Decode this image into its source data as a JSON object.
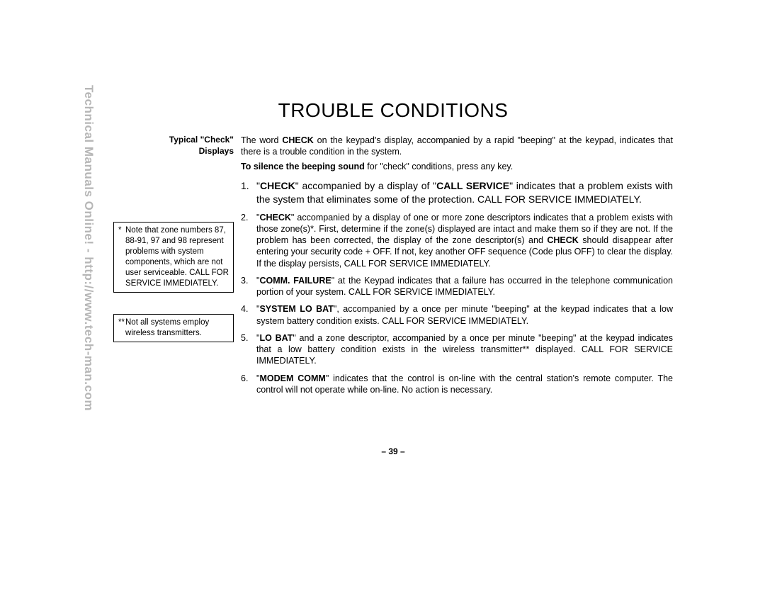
{
  "watermark": "Technical Manuals Online! - http://www.tech-man.com",
  "title": "TROUBLE CONDITIONS",
  "left": {
    "heading_l1": "Typical \"Check\"",
    "heading_l2": "Displays",
    "note1_star": "*",
    "note1_text": "Note that zone numbers 87, 88-91, 97 and 98 represent problems with system components, which are not user serviceable. CALL FOR SERVICE IMMEDIATELY.",
    "note2_star": "**",
    "note2_text": "Not all systems employ wireless transmitters."
  },
  "intro": {
    "p1a": "The word ",
    "p1_bold": "CHECK",
    "p1b": " on the keypad's display, accompanied by a rapid \"beeping\" at the keypad, indicates that there is a trouble condition in the system.",
    "p2_bold": "To silence the beeping sound",
    "p2b": " for \"check\" conditions, press any key."
  },
  "items": [
    {
      "num": "1.",
      "big": true,
      "segs": [
        {
          "t": "\"",
          "b": false
        },
        {
          "t": "CHECK",
          "b": true
        },
        {
          "t": "\" accompanied by a display of \"",
          "b": false
        },
        {
          "t": "CALL SERVICE",
          "b": true
        },
        {
          "t": "\" indicates that a problem exists with the system that eliminates some of the protection. CALL FOR SERVICE IMMEDIATELY.",
          "b": false
        }
      ]
    },
    {
      "num": "2.",
      "big": false,
      "segs": [
        {
          "t": "\"",
          "b": false
        },
        {
          "t": "CHECK",
          "b": true
        },
        {
          "t": "\" accompanied by a display of one or more zone descriptors indicates that a problem exists with those zone(s)*. First, determine if the zone(s) displayed are intact and make them so if they are not. If the problem has been corrected, the display of the zone descriptor(s) and ",
          "b": false
        },
        {
          "t": "CHECK",
          "b": true
        },
        {
          "t": " should disappear after entering your security code + OFF. If not, key another OFF sequence (Code plus OFF) to clear the display. If the display persists, CALL FOR SERVICE IMMEDIATELY.",
          "b": false
        }
      ]
    },
    {
      "num": "3.",
      "big": false,
      "segs": [
        {
          "t": "\"",
          "b": false
        },
        {
          "t": "COMM. FAILURE",
          "b": true
        },
        {
          "t": "\" at the Keypad indicates that a failure has occurred in the telephone communication portion of your system. CALL FOR SERVICE IMMEDIATELY.",
          "b": false
        }
      ]
    },
    {
      "num": "4.",
      "big": false,
      "segs": [
        {
          "t": "\"",
          "b": false
        },
        {
          "t": "SYSTEM LO BAT",
          "b": true
        },
        {
          "t": "\", accompanied by a once per minute \"beeping\" at the keypad indicates that a low system battery condition exists. CALL FOR SERVICE IMMEDIATELY.",
          "b": false
        }
      ]
    },
    {
      "num": "5.",
      "big": false,
      "segs": [
        {
          "t": "\"",
          "b": false
        },
        {
          "t": "LO BAT",
          "b": true
        },
        {
          "t": "\" and a zone descriptor, accompanied by a once per minute \"beeping\" at the keypad indicates that a low battery condition exists in the wireless transmitter** displayed. CALL FOR SERVICE IMMEDIATELY.",
          "b": false
        }
      ]
    },
    {
      "num": "6.",
      "big": false,
      "segs": [
        {
          "t": "\"",
          "b": false
        },
        {
          "t": "MODEM COMM",
          "b": true
        },
        {
          "t": "\" indicates that the control is on-line with the central station's remote computer. The control will not operate while on-line. No action is necessary.",
          "b": false
        }
      ]
    }
  ],
  "page_num": "– 39 –"
}
